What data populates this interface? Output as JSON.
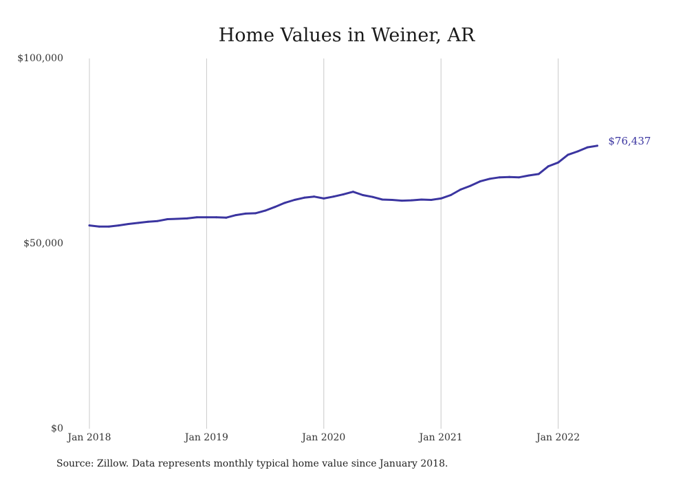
{
  "chart_data": {
    "type": "line",
    "title": "Home Values in Weiner, AR",
    "xlabel": "",
    "ylabel": "",
    "ylim": [
      0,
      100000
    ],
    "grid": "vertical-at-year",
    "line_color": "#3b35a0",
    "y_ticks": [
      {
        "value": 0,
        "label": "$0"
      },
      {
        "value": 50000,
        "label": "$50,000"
      },
      {
        "value": 100000,
        "label": "$100,000"
      }
    ],
    "x_ticks": [
      {
        "value": "2018-01",
        "label": "Jan 2018"
      },
      {
        "value": "2019-01",
        "label": "Jan 2019"
      },
      {
        "value": "2020-01",
        "label": "Jan 2020"
      },
      {
        "value": "2021-01",
        "label": "Jan 2021"
      },
      {
        "value": "2022-01",
        "label": "Jan 2022"
      }
    ],
    "end_label": "$76,437",
    "x": [
      "2018-01",
      "2018-02",
      "2018-03",
      "2018-04",
      "2018-05",
      "2018-06",
      "2018-07",
      "2018-08",
      "2018-09",
      "2018-10",
      "2018-11",
      "2018-12",
      "2019-01",
      "2019-02",
      "2019-03",
      "2019-04",
      "2019-05",
      "2019-06",
      "2019-07",
      "2019-08",
      "2019-09",
      "2019-10",
      "2019-11",
      "2019-12",
      "2020-01",
      "2020-02",
      "2020-03",
      "2020-04",
      "2020-05",
      "2020-06",
      "2020-07",
      "2020-08",
      "2020-09",
      "2020-10",
      "2020-11",
      "2020-12",
      "2021-01",
      "2021-02",
      "2021-03",
      "2021-04",
      "2021-05",
      "2021-06",
      "2021-07",
      "2021-08",
      "2021-09",
      "2021-10",
      "2021-11",
      "2021-12",
      "2022-01",
      "2022-02",
      "2022-03",
      "2022-04",
      "2022-05"
    ],
    "series": [
      {
        "values": [
          54900,
          54600,
          54600,
          54900,
          55300,
          55600,
          55900,
          56100,
          56600,
          56700,
          56800,
          57100,
          57100,
          57100,
          57000,
          57700,
          58100,
          58200,
          58900,
          59900,
          61000,
          61800,
          62400,
          62700,
          62200,
          62700,
          63300,
          64000,
          63100,
          62600,
          61900,
          61800,
          61600,
          61700,
          61900,
          61800,
          62200,
          63100,
          64600,
          65600,
          66800,
          67500,
          67900,
          68000,
          67900,
          68400,
          68800,
          70900,
          71900,
          74000,
          74900,
          76000,
          76437
        ]
      }
    ]
  },
  "source_note": "Source: Zillow. Data represents monthly typical home value since January 2018."
}
